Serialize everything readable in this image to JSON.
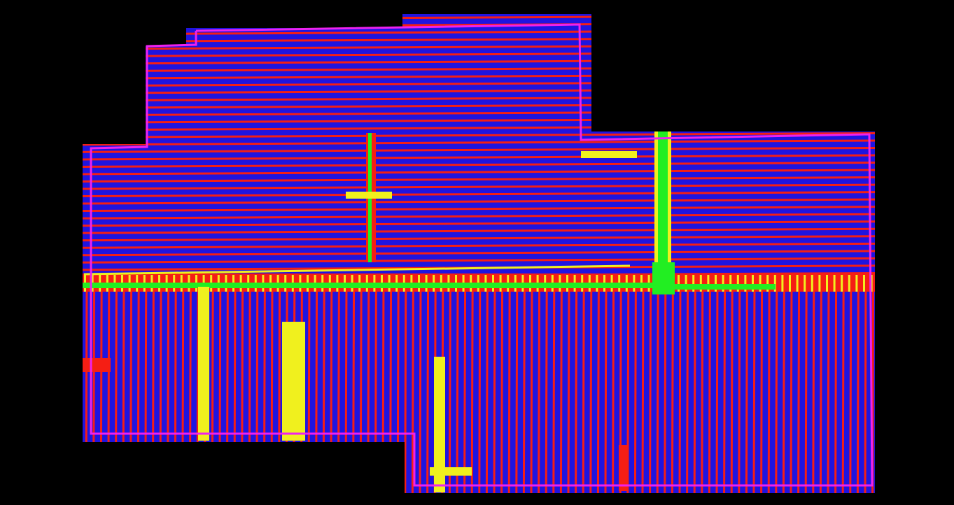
{
  "colors": {
    "background": "#000000",
    "floor": "#1f14e0",
    "ridge_line": "#f51e14",
    "pathway": "#f0f01e",
    "marker": "#22ee22",
    "boundary": "#ee22ee"
  },
  "icons": {
    "boundary": "polygon-outline-icon",
    "pathway": "strip-icon",
    "marker": "square-marker-icon"
  }
}
